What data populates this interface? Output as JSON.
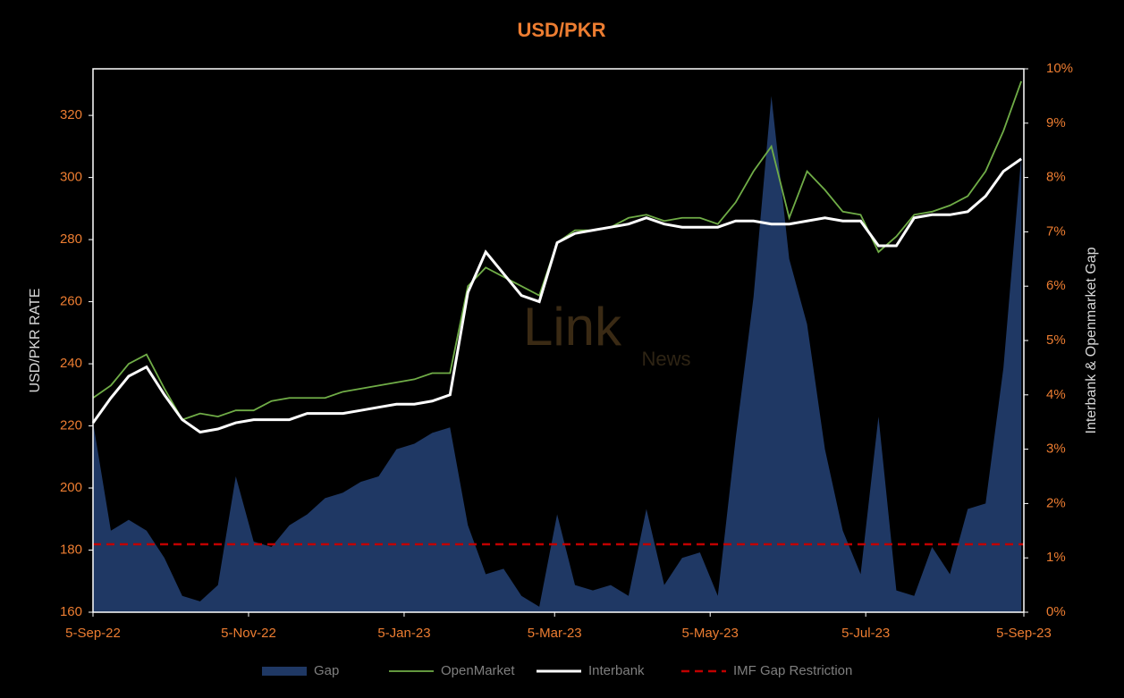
{
  "chart_data": {
    "type": "line",
    "title": "USD/PKR",
    "ylabel": "USD/PKR RATE",
    "y2label": "Interbank & Openmarket Gap",
    "watermark": [
      "Link",
      "News"
    ],
    "xlim": [
      "5-Sep-22",
      "5-Sep-23"
    ],
    "xticks": [
      "5-Sep-22",
      "5-Nov-22",
      "5-Jan-23",
      "5-Mar-23",
      "5-May-23",
      "5-Jul-23",
      "5-Sep-23"
    ],
    "ylim": [
      160,
      335
    ],
    "yticks": [
      160,
      180,
      200,
      220,
      240,
      260,
      280,
      300,
      320
    ],
    "y2lim": [
      0,
      10
    ],
    "y2ticks": [
      {
        "value": 0,
        "label": "0%"
      },
      {
        "value": 1,
        "label": "1%"
      },
      {
        "value": 2,
        "label": "2%"
      },
      {
        "value": 3,
        "label": "3%"
      },
      {
        "value": 4,
        "label": "4%"
      },
      {
        "value": 5,
        "label": "5%"
      },
      {
        "value": 6,
        "label": "6%"
      },
      {
        "value": 7,
        "label": "7%"
      },
      {
        "value": 8,
        "label": "8%"
      },
      {
        "value": 9,
        "label": "9%"
      },
      {
        "value": 10,
        "label": "10%"
      }
    ],
    "x": [
      "5-Sep-22",
      "12-Sep-22",
      "19-Sep-22",
      "26-Sep-22",
      "3-Oct-22",
      "10-Oct-22",
      "17-Oct-22",
      "24-Oct-22",
      "31-Oct-22",
      "7-Nov-22",
      "14-Nov-22",
      "21-Nov-22",
      "28-Nov-22",
      "5-Dec-22",
      "12-Dec-22",
      "19-Dec-22",
      "26-Dec-22",
      "2-Jan-23",
      "9-Jan-23",
      "16-Jan-23",
      "23-Jan-23",
      "30-Jan-23",
      "6-Feb-23",
      "13-Feb-23",
      "20-Feb-23",
      "27-Feb-23",
      "6-Mar-23",
      "13-Mar-23",
      "20-Mar-23",
      "27-Mar-23",
      "3-Apr-23",
      "10-Apr-23",
      "17-Apr-23",
      "24-Apr-23",
      "1-May-23",
      "8-May-23",
      "15-May-23",
      "22-May-23",
      "29-May-23",
      "5-Jun-23",
      "12-Jun-23",
      "19-Jun-23",
      "26-Jun-23",
      "3-Jul-23",
      "10-Jul-23",
      "17-Jul-23",
      "24-Jul-23",
      "31-Jul-23",
      "7-Aug-23",
      "14-Aug-23",
      "21-Aug-23",
      "28-Aug-23",
      "4-Sep-23"
    ],
    "series": [
      {
        "name": "Gap",
        "type": "area",
        "axis": "y2",
        "color": "#1f3864",
        "values": [
          3.5,
          1.5,
          1.7,
          1.5,
          1.0,
          0.3,
          0.2,
          0.5,
          2.5,
          1.3,
          1.2,
          1.6,
          1.8,
          2.1,
          2.2,
          2.4,
          2.5,
          3.0,
          3.1,
          3.3,
          3.4,
          1.6,
          0.7,
          0.8,
          0.3,
          0.1,
          1.8,
          0.5,
          0.4,
          0.5,
          0.3,
          1.9,
          0.5,
          1.0,
          1.1,
          0.3,
          3.2,
          5.8,
          9.5,
          6.5,
          5.3,
          3.0,
          1.5,
          0.7,
          3.6,
          0.4,
          0.3,
          1.2,
          0.7,
          1.9,
          2.0,
          4.5,
          8.4
        ]
      },
      {
        "name": "OpenMarket",
        "type": "line",
        "color": "#70ad47",
        "values": [
          229,
          233,
          240,
          243,
          232,
          222,
          224,
          223,
          225,
          225,
          228,
          229,
          229,
          229,
          231,
          232,
          233,
          234,
          235,
          237,
          237,
          265,
          271,
          268,
          265,
          262,
          279,
          283,
          283,
          284,
          287,
          288,
          286,
          287,
          287,
          285,
          292,
          302,
          310,
          287,
          302,
          296,
          289,
          288,
          276,
          281,
          288,
          289,
          291,
          294,
          302,
          315,
          331
        ]
      },
      {
        "name": "Interbank",
        "type": "line",
        "color": "#ffffff",
        "values": [
          221,
          229,
          236,
          239,
          230,
          222,
          218,
          219,
          221,
          222,
          222,
          222,
          224,
          224,
          224,
          225,
          226,
          227,
          227,
          228,
          230,
          263,
          276,
          269,
          262,
          260,
          279,
          282,
          283,
          284,
          285,
          287,
          285,
          284,
          284,
          284,
          286,
          286,
          285,
          285,
          286,
          287,
          286,
          286,
          278,
          278,
          287,
          288,
          288,
          289,
          294,
          302,
          306
        ]
      }
    ],
    "reference_line": {
      "name": "IMF Gap Restriction",
      "value": 1.25,
      "axis": "y2",
      "color": "#c00000"
    }
  }
}
